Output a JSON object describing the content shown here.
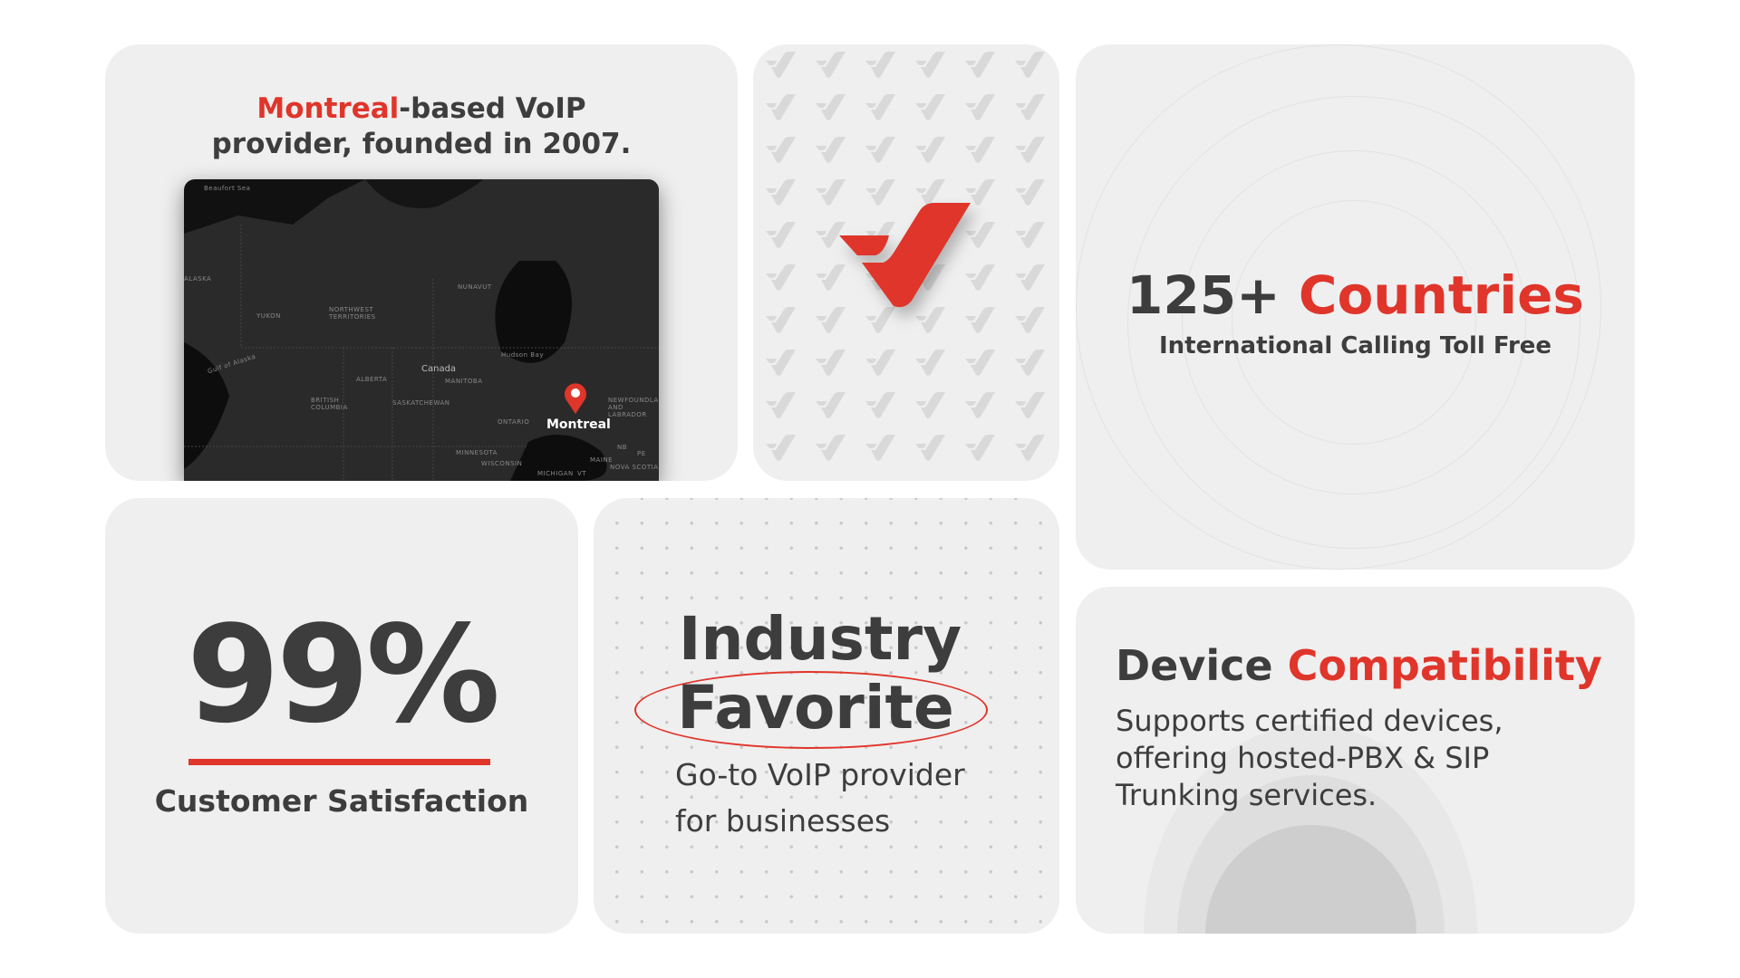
{
  "card_founded": {
    "title_highlight": "Montreal",
    "title_rest_line1": "-based VoIP",
    "title_line2": "provider, founded in 2007.",
    "map": {
      "city_label": "Montreal",
      "country_label": "Canada",
      "region_labels": [
        "Beaufort Sea",
        "ALASKA",
        "YUKON",
        "NORTHWEST TERRITORIES",
        "NUNAVUT",
        "Hudson Bay",
        "ALBERTA",
        "BRITISH COLUMBIA",
        "SASKATCHEWAN",
        "MANITOBA",
        "ONTARIO",
        "NEWFOUNDLAND AND LABRADOR",
        "Gulf of Alaska",
        "MINNESOTA",
        "WISCONSIN",
        "MICHIGAN",
        "MAINE",
        "NOVA SCOTIA",
        "NB",
        "PE",
        "VT"
      ],
      "pin_icon": "map-pin-icon"
    }
  },
  "card_logo": {
    "logo_icon": "brand-checkmark-logo",
    "pattern_icon": "checkmark-icon"
  },
  "card_countries": {
    "number": "125+",
    "highlight": "Countries",
    "subtitle": "International Calling Toll Free"
  },
  "card_satisfaction": {
    "value": "99%",
    "label": "Customer Satisfaction"
  },
  "card_industry": {
    "line1": "Industry",
    "line2": "Favorite",
    "sub1": "Go-to VoIP provider",
    "sub2": "for businesses"
  },
  "card_device": {
    "title_dark": "Device",
    "title_red": "Compatibility",
    "body1": "Supports certified devices,",
    "body2": "offering hosted-PBX & SIP",
    "body3": "Trunking services."
  },
  "colors": {
    "accent": "#e0352b",
    "text": "#3d3d3d",
    "card": "#efefef"
  }
}
